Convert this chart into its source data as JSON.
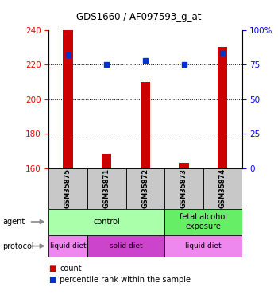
{
  "title": "GDS1660 / AF097593_g_at",
  "samples": [
    "GSM35875",
    "GSM35871",
    "GSM35872",
    "GSM35873",
    "GSM35874"
  ],
  "counts": [
    240,
    168,
    210,
    163,
    230
  ],
  "percentile_ranks": [
    82,
    75,
    78,
    75,
    83
  ],
  "ylim_left": [
    160,
    240
  ],
  "ylim_right": [
    0,
    100
  ],
  "yticks_left": [
    160,
    180,
    200,
    220,
    240
  ],
  "yticks_right": [
    0,
    25,
    50,
    75,
    100
  ],
  "ytick_labels_right": [
    "0",
    "25",
    "50",
    "75",
    "100%"
  ],
  "bar_color": "#cc0000",
  "dot_color": "#0033cc",
  "bar_bottom": 160,
  "bar_width": 0.25,
  "agent_groups": [
    {
      "label": "control",
      "span": [
        0,
        3
      ],
      "color": "#aaffaa"
    },
    {
      "label": "fetal alcohol\nexposure",
      "span": [
        3,
        5
      ],
      "color": "#66ee66"
    }
  ],
  "protocol_groups": [
    {
      "label": "liquid diet",
      "span": [
        0,
        1
      ],
      "color": "#ee88ee"
    },
    {
      "label": "solid diet",
      "span": [
        1,
        3
      ],
      "color": "#cc44cc"
    },
    {
      "label": "liquid diet",
      "span": [
        3,
        5
      ],
      "color": "#ee88ee"
    }
  ],
  "agent_label": "agent",
  "protocol_label": "protocol",
  "legend_count_label": "count",
  "legend_pct_label": "percentile rank within the sample",
  "sample_bg_color": "#c8c8c8",
  "plot_bg_color": "#ffffff"
}
